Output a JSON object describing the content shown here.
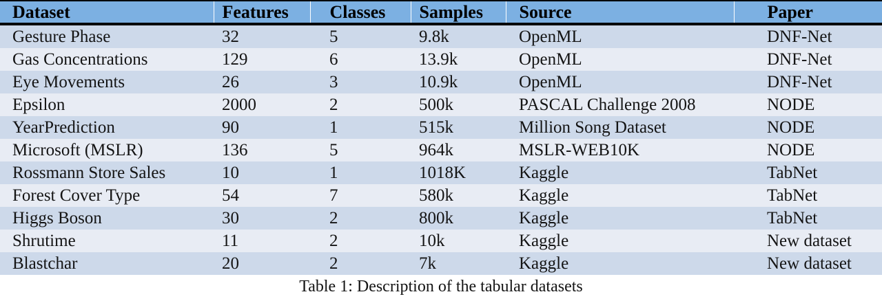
{
  "table": {
    "columns": [
      {
        "label": "Dataset"
      },
      {
        "label": "Features"
      },
      {
        "label": "Classes"
      },
      {
        "label": "Samples"
      },
      {
        "label": "Source"
      },
      {
        "label": "Paper"
      }
    ],
    "rows": [
      {
        "dataset": "Gesture Phase",
        "features": "32",
        "classes": "5",
        "samples": "9.8k",
        "source": "OpenML",
        "paper": "DNF-Net"
      },
      {
        "dataset": "Gas Concentrations",
        "features": "129",
        "classes": "6",
        "samples": "13.9k",
        "source": "OpenML",
        "paper": "DNF-Net"
      },
      {
        "dataset": "Eye Movements",
        "features": "26",
        "classes": "3",
        "samples": "10.9k",
        "source": "OpenML",
        "paper": "DNF-Net"
      },
      {
        "dataset": "Epsilon",
        "features": "2000",
        "classes": "2",
        "samples": "500k",
        "source": "PASCAL Challenge 2008",
        "paper": "NODE"
      },
      {
        "dataset": "YearPrediction",
        "features": "90",
        "classes": "1",
        "samples": "515k",
        "source": "Million Song Dataset",
        "paper": "NODE"
      },
      {
        "dataset": "Microsoft (MSLR)",
        "features": "136",
        "classes": "5",
        "samples": "964k",
        "source": "MSLR-WEB10K",
        "paper": "NODE"
      },
      {
        "dataset": "Rossmann Store Sales",
        "features": "10",
        "classes": "1",
        "samples": "1018K",
        "source": "Kaggle",
        "paper": "TabNet"
      },
      {
        "dataset": "Forest Cover Type",
        "features": "54",
        "classes": "7",
        "samples": "580k",
        "source": "Kaggle",
        "paper": "TabNet"
      },
      {
        "dataset": "Higgs Boson",
        "features": "30",
        "classes": "2",
        "samples": "800k",
        "source": "Kaggle",
        "paper": "TabNet"
      },
      {
        "dataset": "Shrutime",
        "features": "11",
        "classes": "2",
        "samples": "10k",
        "source": "Kaggle",
        "paper": "New dataset"
      },
      {
        "dataset": "Blastchar",
        "features": "20",
        "classes": "2",
        "samples": "7k",
        "source": "Kaggle",
        "paper": "New dataset"
      }
    ]
  },
  "caption": "Table 1: Description of the tabular datasets",
  "colors": {
    "header_bg": "#7cb0e2",
    "row_odd": "#cdd9ea",
    "row_even": "#e8ecf4",
    "rule": "#000000",
    "text": "#141414"
  }
}
